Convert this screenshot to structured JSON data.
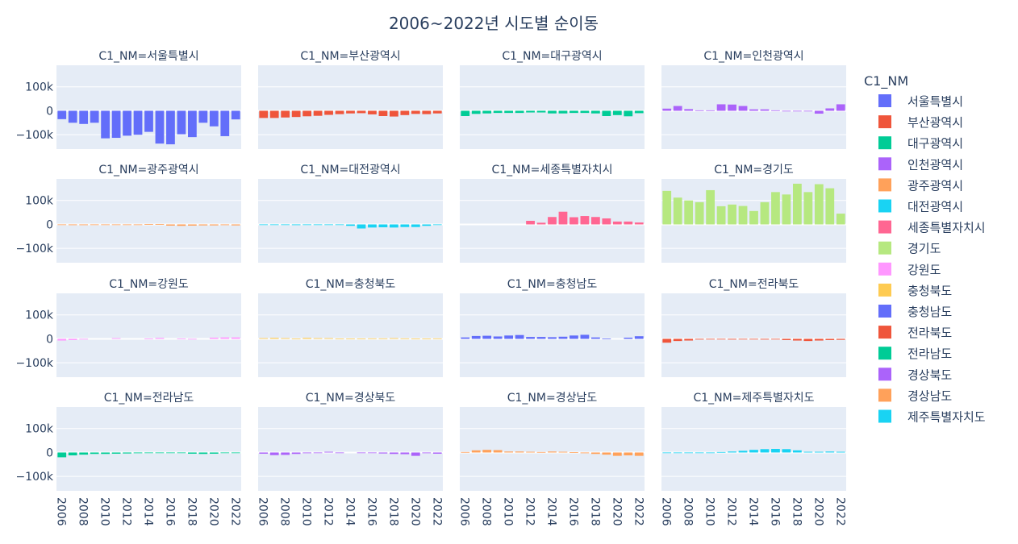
{
  "chart_data": {
    "type": "bar",
    "title": "2006~2022년 시도별 순이동",
    "facet_prefix": "C1_NM=",
    "legend_title": "C1_NM",
    "legend_position": "right",
    "x": [
      2006,
      2007,
      2008,
      2009,
      2010,
      2011,
      2012,
      2013,
      2014,
      2015,
      2016,
      2017,
      2018,
      2019,
      2020,
      2021,
      2022
    ],
    "x_tick_labels": [
      "2006",
      "2008",
      "2010",
      "2012",
      "2014",
      "2016",
      "2018",
      "2020",
      "2022"
    ],
    "ylim": [
      -160000,
      190000
    ],
    "y_tick_labels": [
      "100k",
      "0",
      "−100k"
    ],
    "y_tick_values": [
      100000,
      0,
      -100000
    ],
    "grid": true,
    "series": [
      {
        "name": "서울특별시",
        "color": "#636efa",
        "values": [
          -35000,
          -50000,
          -55000,
          -50000,
          -115000,
          -113000,
          -104000,
          -100000,
          -88000,
          -137000,
          -140000,
          -98000,
          -110000,
          -50000,
          -65000,
          -106000,
          -36000
        ]
      },
      {
        "name": "부산광역시",
        "color": "#EF553B",
        "values": [
          -30000,
          -30000,
          -28000,
          -26000,
          -23000,
          -21000,
          -17000,
          -14000,
          -11000,
          -10000,
          -15000,
          -22000,
          -24000,
          -18000,
          -13000,
          -14000,
          -11000
        ]
      },
      {
        "name": "대구광역시",
        "color": "#00cc96",
        "values": [
          -22000,
          -13000,
          -11000,
          -9000,
          -9000,
          -9000,
          -7000,
          -7000,
          -11000,
          -11000,
          -9000,
          -9000,
          -11000,
          -22000,
          -18000,
          -23000,
          -10000
        ]
      },
      {
        "name": "인천광역시",
        "color": "#ab63fa",
        "values": [
          9000,
          20000,
          7000,
          2000,
          2000,
          27000,
          26000,
          20000,
          6000,
          6000,
          2000,
          -1000,
          -1000,
          -1000,
          -12000,
          10000,
          27000
        ]
      },
      {
        "name": "광주광역시",
        "color": "#FFA15A",
        "values": [
          -2000,
          -3000,
          -3000,
          -1000,
          -2000,
          -1000,
          -1000,
          -1000,
          1000,
          1000,
          -5000,
          -6000,
          -5000,
          -4000,
          -4000,
          -3000,
          -4000
        ]
      },
      {
        "name": "대전광역시",
        "color": "#19d3f3",
        "values": [
          -2000,
          -1000,
          -2000,
          -3000,
          -1000,
          -2000,
          -1000,
          -1000,
          -6000,
          -17000,
          -13000,
          -12000,
          -13000,
          -11000,
          -11000,
          -6000,
          -2000
        ]
      },
      {
        "name": "세종특별자치시",
        "color": "#FF6692",
        "values": [
          0,
          0,
          0,
          0,
          0,
          0,
          15000,
          7000,
          31000,
          53000,
          30000,
          35000,
          31000,
          25000,
          12000,
          12000,
          8000
        ]
      },
      {
        "name": "경기도",
        "color": "#B6E880",
        "values": [
          140000,
          112000,
          100000,
          93000,
          143000,
          76000,
          83000,
          77000,
          56000,
          93000,
          135000,
          125000,
          170000,
          135000,
          168000,
          151000,
          45000
        ]
      },
      {
        "name": "강원도",
        "color": "#FF97FF",
        "values": [
          -7000,
          -5000,
          -1000,
          0,
          0,
          3000,
          0,
          0,
          1000,
          4000,
          0,
          1000,
          -2000,
          0,
          5000,
          6000,
          6000
        ]
      },
      {
        "name": "충청북도",
        "color": "#FECB52",
        "values": [
          3000,
          4000,
          3000,
          1000,
          4000,
          3000,
          3000,
          1000,
          1000,
          1000,
          2000,
          2000,
          3000,
          2000,
          1000,
          1000,
          2000
        ]
      },
      {
        "name": "충청남도",
        "color": "#636efa",
        "values": [
          6000,
          12000,
          13000,
          10000,
          14000,
          16000,
          8000,
          8000,
          7000,
          9000,
          14000,
          17000,
          6000,
          1000,
          0,
          5000,
          11000
        ]
      },
      {
        "name": "전라북도",
        "color": "#EF553B",
        "values": [
          -16000,
          -9000,
          -7000,
          -3000,
          -2000,
          -2000,
          -3000,
          -1000,
          -1000,
          -3000,
          -2000,
          -5000,
          -7000,
          -9000,
          -7000,
          -5000,
          -4000
        ]
      },
      {
        "name": "전라남도",
        "color": "#00cc96",
        "values": [
          -20000,
          -12000,
          -9000,
          -6000,
          -6000,
          -5000,
          -4000,
          -3000,
          -1000,
          -1000,
          -2000,
          -2000,
          -5000,
          -6000,
          -5000,
          -2000,
          -1000
        ]
      },
      {
        "name": "경상북도",
        "color": "#ab63fa",
        "values": [
          -5000,
          -11000,
          -10000,
          -6000,
          -3000,
          -1000,
          3000,
          -2000,
          0,
          -1000,
          -2000,
          -4000,
          -6000,
          -7000,
          -14000,
          -3000,
          -5000
        ]
      },
      {
        "name": "경상남도",
        "color": "#FFA15A",
        "values": [
          2000,
          9000,
          11000,
          10000,
          4000,
          4000,
          3000,
          2000,
          4000,
          3000,
          1000,
          -3000,
          -6000,
          -9000,
          -14000,
          -12000,
          -14000
        ]
      },
      {
        "name": "제주특별자치도",
        "color": "#19d3f3",
        "values": [
          -2000,
          -1000,
          -1000,
          -1000,
          -1000,
          2000,
          4000,
          7000,
          11000,
          14000,
          15000,
          14000,
          9000,
          3000,
          3000,
          4000,
          3000
        ]
      }
    ]
  }
}
